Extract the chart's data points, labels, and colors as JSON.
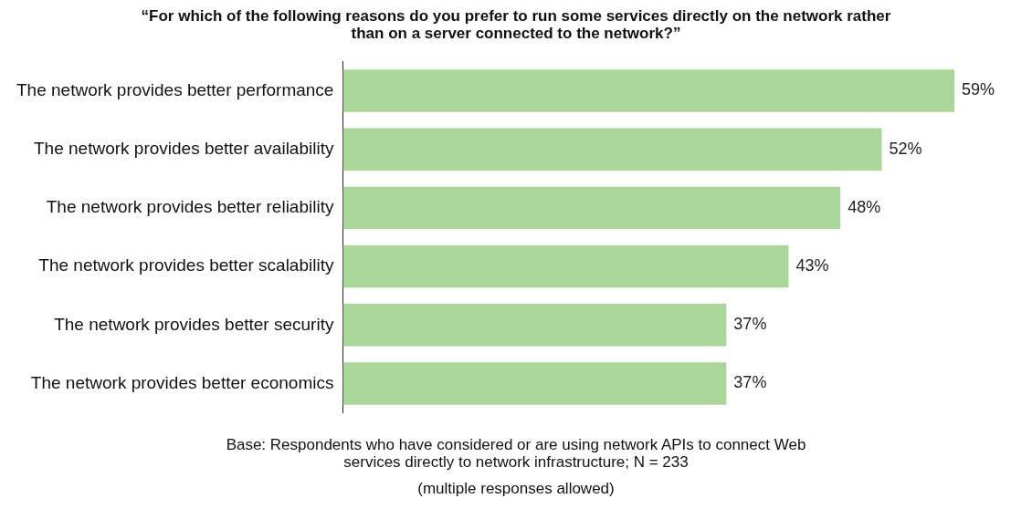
{
  "chart_data": {
    "type": "bar",
    "orientation": "horizontal",
    "title": "“For which of the following reasons do you prefer to run some services directly on the network rather than on a server connected to the network?”",
    "categories": [
      "The network provides better performance",
      "The network provides better availability",
      "The network provides better reliability",
      "The network provides better scalability",
      "The network provides better security",
      "The network provides better economics"
    ],
    "values": [
      59,
      52,
      48,
      43,
      37,
      37
    ],
    "value_labels": [
      "59%",
      "52%",
      "48%",
      "43%",
      "37%",
      "37%"
    ],
    "color": "#abd69b",
    "legend": false,
    "annotations": [
      "Base: Respondents who have considered or are using network APIs to connect Web services directly to network infrastructure; N = 233",
      "(multiple responses allowed)"
    ]
  }
}
